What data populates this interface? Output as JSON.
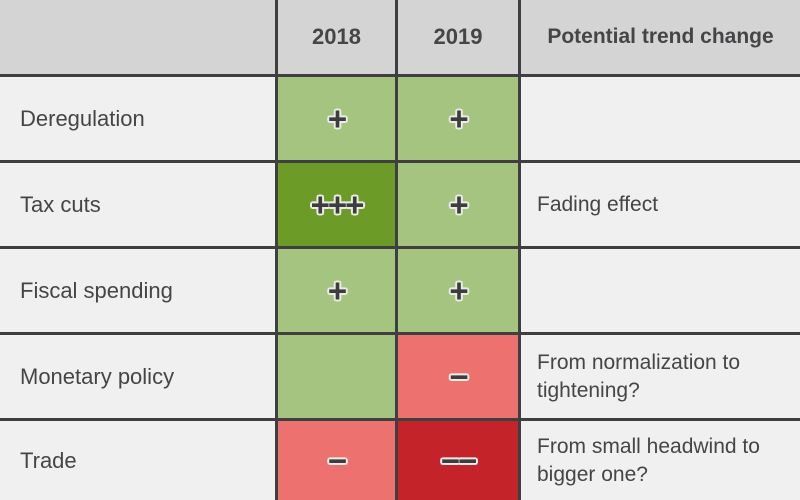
{
  "colors": {
    "header-bg": "#d4d4d4",
    "row-bg": "#f0f0f0",
    "grid-line": "#3f3f3f",
    "text": "#454547",
    "symbol": "#3d3d3d",
    "symbol-outline": "#ebebe8",
    "positive": "#a5c480",
    "strong-positive": "#6d9b28",
    "negative": "#ed726f",
    "strong-negative": "#c5232a"
  },
  "header": {
    "label": "",
    "y2018": "2018",
    "y2019": "2019",
    "trend": "Potential trend change"
  },
  "rows": [
    {
      "label": "Deregulation",
      "c2018": {
        "symbol": "+",
        "level": "positive"
      },
      "c2019": {
        "symbol": "+",
        "level": "positive"
      },
      "trend": ""
    },
    {
      "label": "Tax cuts",
      "c2018": {
        "symbol": "+++",
        "level": "strong-positive"
      },
      "c2019": {
        "symbol": "+",
        "level": "positive"
      },
      "trend": "Fading effect"
    },
    {
      "label": "Fiscal spending",
      "c2018": {
        "symbol": "+",
        "level": "positive"
      },
      "c2019": {
        "symbol": "+",
        "level": "positive"
      },
      "trend": ""
    },
    {
      "label": "Monetary policy",
      "c2018": {
        "symbol": "",
        "level": "positive"
      },
      "c2019": {
        "symbol": "−",
        "level": "negative"
      },
      "trend": "From normalization to tightening?"
    },
    {
      "label": "Trade",
      "c2018": {
        "symbol": "−",
        "level": "negative"
      },
      "c2019": {
        "symbol": "−−",
        "level": "strong-negative"
      },
      "trend": "From small headwind to bigger one?"
    }
  ],
  "chart_data": {
    "type": "table",
    "title": "",
    "columns": [
      "",
      "2018",
      "2019",
      "Potential trend change"
    ],
    "row_labels": [
      "Deregulation",
      "Tax cuts",
      "Fiscal spending",
      "Monetary policy",
      "Trade"
    ],
    "cells": [
      {
        "row": "Deregulation",
        "2018": "+",
        "2019": "+",
        "trend_change": ""
      },
      {
        "row": "Tax cuts",
        "2018": "+++",
        "2019": "+",
        "trend_change": "Fading effect"
      },
      {
        "row": "Fiscal spending",
        "2018": "+",
        "2019": "+",
        "trend_change": ""
      },
      {
        "row": "Monetary policy",
        "2018": "positive (no symbol)",
        "2019": "−",
        "trend_change": "From normalization to tightening?"
      },
      {
        "row": "Trade",
        "2018": "−",
        "2019": "−−",
        "trend_change": "From small headwind to bigger one?"
      }
    ],
    "sentiment_scale": {
      "strong-positive": "dark green",
      "positive": "medium green",
      "negative": "light red",
      "strong-negative": "dark red"
    }
  }
}
